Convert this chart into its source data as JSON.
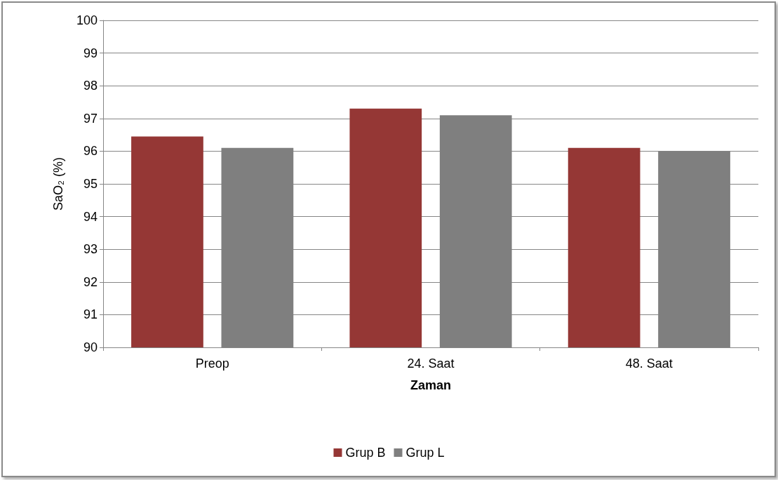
{
  "chart_data": {
    "type": "bar",
    "xlabel": "Zaman",
    "ylabel": "SaO₂ (%)",
    "categories": [
      "Preop",
      "24. Saat",
      "48. Saat"
    ],
    "series": [
      {
        "name": "Grup B",
        "color": "#953735",
        "values": [
          96.45,
          97.3,
          96.1
        ]
      },
      {
        "name": "Grup L",
        "color": "#7f7f7f",
        "values": [
          96.1,
          97.1,
          96.0
        ]
      }
    ],
    "ylim": [
      90,
      100
    ],
    "yticks": [
      90,
      91,
      92,
      93,
      94,
      95,
      96,
      97,
      98,
      99,
      100
    ],
    "grid": "y",
    "legend": "bottom"
  }
}
